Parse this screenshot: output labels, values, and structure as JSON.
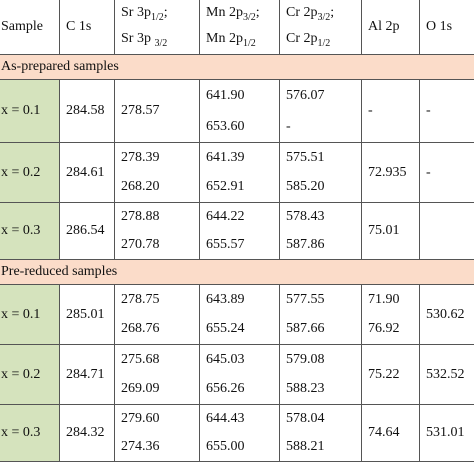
{
  "table": {
    "header": [
      [
        [
          {
            "text": "Sample"
          }
        ]
      ],
      [
        [
          {
            "text": "C 1s"
          }
        ]
      ],
      [
        [
          {
            "text": "Sr 3p",
            "sub": "1/2",
            "after": ";"
          }
        ],
        [
          {
            "text": "Sr 3p ",
            "sub": "3/2"
          }
        ]
      ],
      [
        [
          {
            "text": "Mn 2p",
            "sub": "3/2",
            "after": ";"
          }
        ],
        [
          {
            "text": "Mn 2p",
            "sub": "1/2"
          }
        ]
      ],
      [
        [
          {
            "text": "Cr 2p",
            "sub": "3/2",
            "after": ";"
          }
        ],
        [
          {
            "text": "Cr 2p",
            "sub": "1/2"
          }
        ]
      ],
      [
        [
          {
            "text": "Al 2p"
          }
        ]
      ],
      [
        [
          {
            "text": "O 1s"
          }
        ]
      ]
    ],
    "sections": [
      {
        "title": "As-prepared samples",
        "rows": [
          [
            [
              "x = 0.1"
            ],
            [
              "284.58"
            ],
            [
              "278.57"
            ],
            [
              "641.90",
              "653.60"
            ],
            [
              "576.07",
              "-"
            ],
            [
              "-"
            ],
            [
              "-"
            ]
          ],
          [
            [
              "x = 0.2"
            ],
            [
              "284.61"
            ],
            [
              "278.39",
              "268.20"
            ],
            [
              "641.39",
              "652.91"
            ],
            [
              "575.51",
              "585.20"
            ],
            [
              "72.935"
            ],
            [
              "-"
            ]
          ],
          [
            [
              "x = 0.3"
            ],
            [
              "286.54"
            ],
            [
              "278.88",
              "270.78"
            ],
            [
              "644.22",
              "655.57"
            ],
            [
              "578.43",
              "587.86"
            ],
            [
              "75.01"
            ],
            []
          ]
        ]
      },
      {
        "title": "Pre-reduced samples",
        "rows": [
          [
            [
              "x = 0.1"
            ],
            [
              "285.01"
            ],
            [
              "278.75",
              "268.76"
            ],
            [
              "643.89",
              "655.24"
            ],
            [
              "577.55",
              "587.66"
            ],
            [
              "71.90",
              "76.92"
            ],
            [
              "530.62"
            ]
          ],
          [
            [
              "x = 0.2"
            ],
            [
              "284.71"
            ],
            [
              "275.68",
              "269.09"
            ],
            [
              "645.03",
              "656.26"
            ],
            [
              "579.08",
              "588.23"
            ],
            [
              "75.22"
            ],
            [
              "532.52"
            ]
          ],
          [
            [
              "x = 0.3"
            ],
            [
              "284.32"
            ],
            [
              "279.60",
              "274.36"
            ],
            [
              "644.43",
              "655.00"
            ],
            [
              "578.04",
              "588.21"
            ],
            [
              "74.64"
            ],
            [
              "531.01"
            ]
          ]
        ]
      }
    ]
  }
}
